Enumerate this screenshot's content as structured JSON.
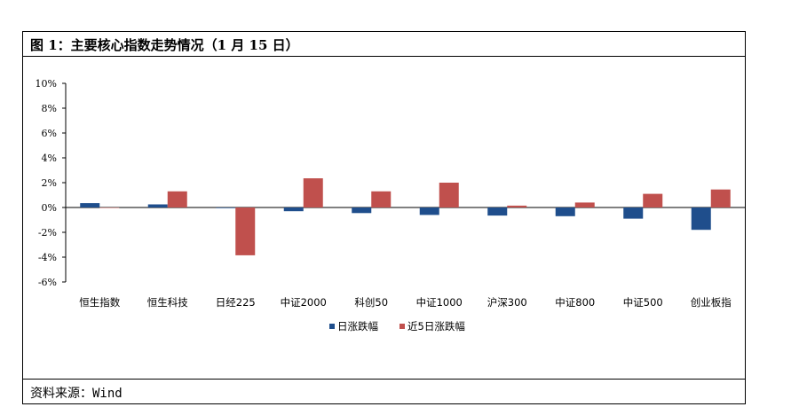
{
  "figure": {
    "title": "图 1：主要核心指数走势情况（1 月 15 日）",
    "source": "资料来源：Wind"
  },
  "chart_data": {
    "type": "bar",
    "categories": [
      "恒生指数",
      "恒生科技",
      "日经225",
      "中证2000",
      "科创50",
      "中证1000",
      "沪深300",
      "中证800",
      "中证500",
      "创业板指"
    ],
    "series": [
      {
        "name": "日涨跌幅",
        "color": "#1f4e8c",
        "values": [
          0.35,
          0.25,
          -0.05,
          -0.3,
          -0.45,
          -0.6,
          -0.65,
          -0.7,
          -0.9,
          -1.8
        ]
      },
      {
        "name": "近5日涨跌幅",
        "color": "#c0504d",
        "values": [
          0.0,
          1.3,
          -3.85,
          2.35,
          1.3,
          2.0,
          0.15,
          0.4,
          1.1,
          1.45
        ]
      }
    ],
    "ylim": [
      -6,
      10
    ],
    "yticks": [
      "10%",
      "8%",
      "6%",
      "4%",
      "2%",
      "0%",
      "-2%",
      "-4%",
      "-6%"
    ],
    "ytick_values": [
      10,
      8,
      6,
      4,
      2,
      0,
      -2,
      -4,
      -6
    ],
    "legend_position": "bottom",
    "grid": false
  }
}
